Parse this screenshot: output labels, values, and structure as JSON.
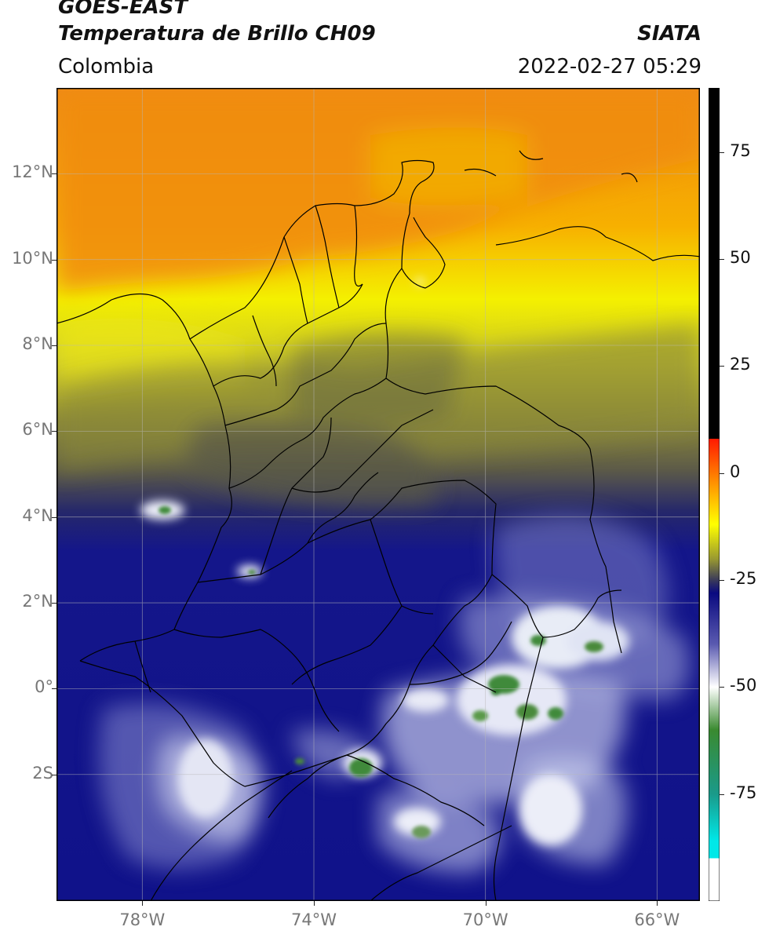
{
  "header": {
    "satellite": "GOES-EAST",
    "product": "Temperatura de Brillo CH09",
    "region": "Colombia",
    "agency": "SIATA",
    "datetime": "2022-02-27 05:29"
  },
  "map": {
    "extent": {
      "lon_min": -80,
      "lon_max": -65,
      "lat_min": -4.95,
      "lat_max": 14
    },
    "lat_ticks": [
      {
        "value": 12,
        "label": "12°N"
      },
      {
        "value": 10,
        "label": "10°N"
      },
      {
        "value": 8,
        "label": "8°N"
      },
      {
        "value": 6,
        "label": "6°N"
      },
      {
        "value": 4,
        "label": "4°N"
      },
      {
        "value": 2,
        "label": "2°N"
      },
      {
        "value": 0,
        "label": "0°"
      },
      {
        "value": -2,
        "label": "2S"
      }
    ],
    "lon_ticks": [
      {
        "value": -78,
        "label": "78°W"
      },
      {
        "value": -74,
        "label": "74°W"
      },
      {
        "value": -70,
        "label": "70°W"
      },
      {
        "value": -66,
        "label": "66°W"
      }
    ],
    "gridlines": true,
    "field_colors": {
      "warm": "#f08a12",
      "mid": "#d8d80a",
      "olive": "#6f6d3c",
      "cold": "#14168a",
      "very_cold": "#e8ecf6",
      "coldest": "#3f8a3a"
    }
  },
  "colorbar": {
    "range": [
      -100,
      90
    ],
    "ticks": [
      {
        "value": 75,
        "label": "75"
      },
      {
        "value": 50,
        "label": "50"
      },
      {
        "value": 25,
        "label": "25"
      },
      {
        "value": 0,
        "label": "0"
      },
      {
        "value": -25,
        "label": "-25"
      },
      {
        "value": -50,
        "label": "-50"
      },
      {
        "value": -75,
        "label": "-75"
      }
    ],
    "stops": [
      {
        "value": 90,
        "color": "#000000"
      },
      {
        "value": 8,
        "color": "#000000"
      },
      {
        "value": 8,
        "color": "#ff1a00"
      },
      {
        "value": -3,
        "color": "#ff9a00"
      },
      {
        "value": -12,
        "color": "#ffff00"
      },
      {
        "value": -20,
        "color": "#9a9a30"
      },
      {
        "value": -25,
        "color": "#3a3a5a"
      },
      {
        "value": -28,
        "color": "#0a0a80"
      },
      {
        "value": -40,
        "color": "#5a5ab0"
      },
      {
        "value": -50,
        "color": "#ffffff"
      },
      {
        "value": -60,
        "color": "#3a8a30"
      },
      {
        "value": -75,
        "color": "#1a9a8a"
      },
      {
        "value": -86,
        "color": "#00e8e8"
      },
      {
        "value": -90,
        "color": "#00e8e8"
      },
      {
        "value": -90,
        "color": "#ffffff"
      },
      {
        "value": -100,
        "color": "#ffffff"
      }
    ]
  }
}
